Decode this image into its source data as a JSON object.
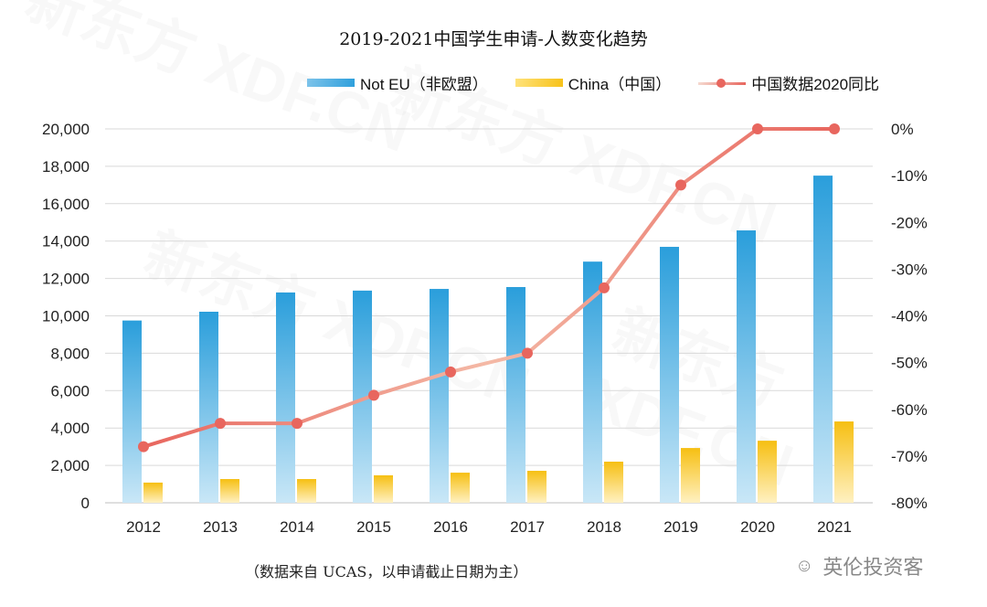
{
  "title": "2019-2021中国学生申请-人数变化趋势",
  "footer": "（数据来自 UCAS，以申请截止日期为主）",
  "brand": {
    "icon": "wechat-icon",
    "name": "英伦投资客"
  },
  "watermark": "新东方 XDF.CN",
  "colors": {
    "not_eu": "#2fa0dc",
    "china": "#f7c21a",
    "line": "#e8665e"
  },
  "chart_data": {
    "type": "bar+line",
    "title": "2019-2021中国学生申请-人数变化趋势",
    "categories": [
      "2012",
      "2013",
      "2014",
      "2015",
      "2016",
      "2017",
      "2018",
      "2019",
      "2020",
      "2021"
    ],
    "series": [
      {
        "name": "Not EU（非欧盟）",
        "type": "bar",
        "axis": "left",
        "values": [
          9750,
          10220,
          11250,
          11350,
          11440,
          11540,
          12900,
          13690,
          14570,
          17500
        ]
      },
      {
        "name": "China（中国）",
        "type": "bar",
        "axis": "left",
        "values": [
          1080,
          1270,
          1270,
          1470,
          1610,
          1710,
          2200,
          2930,
          3320,
          4350
        ]
      },
      {
        "name": "中国数据2020同比",
        "type": "line",
        "axis": "right",
        "values": [
          -68,
          -63,
          -63,
          -57,
          -52,
          -48,
          -34,
          -12,
          0,
          0
        ]
      }
    ],
    "left_axis": {
      "ylim": [
        0,
        20000
      ],
      "ticks": [
        "0",
        "2,000",
        "4,000",
        "6,000",
        "8,000",
        "10,000",
        "12,000",
        "14,000",
        "16,000",
        "18,000",
        "20,000"
      ]
    },
    "right_axis": {
      "ylim": [
        -80,
        0
      ],
      "ticks": [
        "-80%",
        "-70%",
        "-60%",
        "-50%",
        "-40%",
        "-30%",
        "-20%",
        "-10%",
        "0%"
      ]
    },
    "grid": true,
    "legend": "top"
  }
}
